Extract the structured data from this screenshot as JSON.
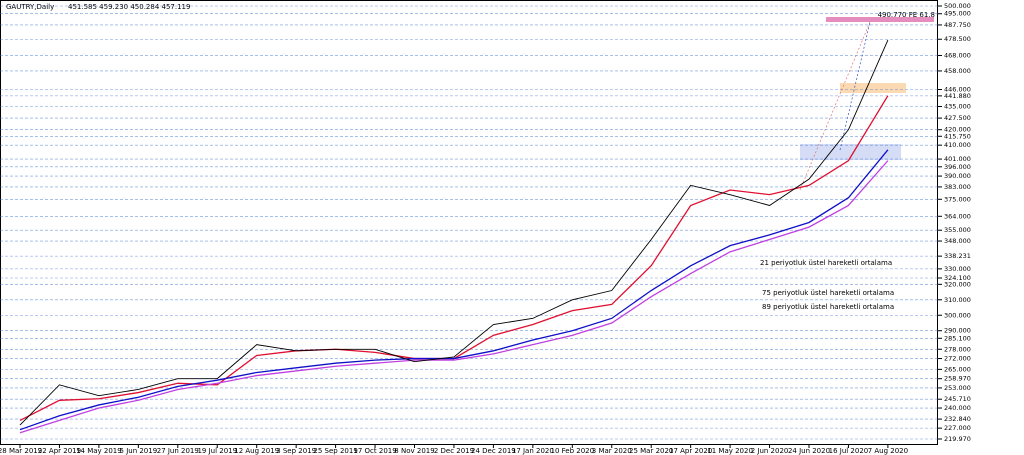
{
  "chart_data": {
    "type": "line",
    "title": "GAUTRY,Daily",
    "subtitle": "451.585 459.230 450.284 457.119",
    "annotation": "490.770 FE 61.8",
    "categories": [
      "28 Mar 2019",
      "22 Apr 2019",
      "14 May 2019",
      "5 Jun 2019",
      "27 Jun 2019",
      "19 Jul 2019",
      "12 Aug 2019",
      "3 Sep 2019",
      "25 Sep 2019",
      "17 Oct 2019",
      "8 Nov 2019",
      "2 Dec 2019",
      "24 Dec 2019",
      "17 Jan 2020",
      "10 Feb 2020",
      "3 Mar 2020",
      "25 Mar 2020",
      "17 Apr 2020",
      "11 May 2020",
      "2 Jun 2020",
      "24 Jun 2020",
      "16 Jul 2020",
      "7 Aug 2020"
    ],
    "values": [
      229,
      255,
      248,
      252,
      259,
      259,
      281,
      277,
      278,
      278,
      270,
      273,
      294,
      298,
      310,
      316,
      349,
      384,
      378,
      371,
      388,
      420,
      478
    ],
    "color": "#000000",
    "series": [
      {
        "name": "21 periyotluk üstel hareketli ortalama",
        "color": "#e0102f",
        "values": [
          232,
          245,
          246,
          250,
          256,
          255,
          274,
          277,
          278,
          276,
          272,
          272,
          287,
          294,
          303,
          307,
          332,
          371,
          381,
          378,
          384,
          400,
          442
        ]
      },
      {
        "name": "75 periyotluk üstel hareketli ortalama",
        "color": "#1010c8",
        "values": [
          226,
          235,
          242,
          247,
          254,
          258,
          263,
          266,
          269,
          271,
          272,
          272,
          277,
          284,
          290,
          298,
          316,
          332,
          345,
          352,
          360,
          376,
          407
        ]
      },
      {
        "name": "89 periyotluk üstel hareketli ortalama",
        "color": "#c040e0",
        "values": [
          224,
          232,
          240,
          245,
          252,
          256,
          261,
          264,
          267,
          269,
          271,
          271,
          275,
          281,
          287,
          295,
          312,
          327,
          341,
          349,
          357,
          371,
          400
        ]
      }
    ],
    "ylim": [
      219.97,
      500
    ],
    "yticks": [
      {
        "value": 500,
        "label": "500.000"
      },
      {
        "value": 495,
        "label": "495.000"
      },
      {
        "value": 487.75,
        "label": "487.750"
      },
      {
        "value": 478.5,
        "label": "478.500"
      },
      {
        "value": 468,
        "label": "468.000"
      },
      {
        "value": 458,
        "label": "458.000"
      },
      {
        "value": 446,
        "label": "446.000"
      },
      {
        "value": 441.88,
        "label": "441.880"
      },
      {
        "value": 435,
        "label": "435.000"
      },
      {
        "value": 427.5,
        "label": "427.500"
      },
      {
        "value": 420,
        "label": "420.000"
      },
      {
        "value": 415.75,
        "label": "415.750"
      },
      {
        "value": 410,
        "label": "410.000"
      },
      {
        "value": 401,
        "label": "401.000"
      },
      {
        "value": 396,
        "label": "396.000"
      },
      {
        "value": 390,
        "label": "390.000"
      },
      {
        "value": 383,
        "label": "383.000"
      },
      {
        "value": 375,
        "label": "375.000"
      },
      {
        "value": 364,
        "label": "364.000"
      },
      {
        "value": 355,
        "label": "355.000"
      },
      {
        "value": 348,
        "label": "348.000"
      },
      {
        "value": 338.231,
        "label": "338.231"
      },
      {
        "value": 330,
        "label": "330.000"
      },
      {
        "value": 324.1,
        "label": "324.100"
      },
      {
        "value": 320,
        "label": "320.000"
      },
      {
        "value": 310,
        "label": "310.000"
      },
      {
        "value": 300,
        "label": "300.000"
      },
      {
        "value": 290,
        "label": "290.000"
      },
      {
        "value": 285.1,
        "label": "285.100"
      },
      {
        "value": 278,
        "label": "278.000"
      },
      {
        "value": 272,
        "label": "272.000"
      },
      {
        "value": 265,
        "label": "265.000"
      },
      {
        "value": 258.97,
        "label": "258.970"
      },
      {
        "value": 253,
        "label": "253.000"
      },
      {
        "value": 245.71,
        "label": "245.710"
      },
      {
        "value": 240,
        "label": "240.000"
      },
      {
        "value": 232.84,
        "label": "232.840"
      },
      {
        "value": 227,
        "label": "227.000"
      },
      {
        "value": 219.97,
        "label": "219.970"
      }
    ],
    "grid": true
  }
}
